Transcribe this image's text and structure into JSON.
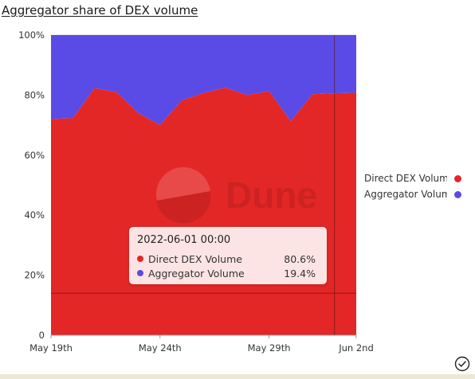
{
  "title": "Aggregator share of DEX volume",
  "colors": {
    "direct": "#e32726",
    "aggregator": "#5b4be6",
    "grid": "#dddddd"
  },
  "legend": [
    {
      "label": "Direct DEX Volume",
      "color": "#e32726"
    },
    {
      "label": "Aggregator Volume",
      "color": "#5b4be6"
    }
  ],
  "tooltip": {
    "title": "2022-06-01 00:00",
    "rows": [
      {
        "label": "Direct DEX Volume",
        "value": "80.6%",
        "color": "#e32726"
      },
      {
        "label": "Aggregator Volume",
        "value": "19.4%",
        "color": "#5b4be6"
      }
    ]
  },
  "watermark": "Dune",
  "chart_data": {
    "type": "area",
    "stacked": "percent",
    "x": [
      "2022-05-19",
      "2022-05-20",
      "2022-05-21",
      "2022-05-22",
      "2022-05-23",
      "2022-05-24",
      "2022-05-25",
      "2022-05-26",
      "2022-05-27",
      "2022-05-28",
      "2022-05-29",
      "2022-05-30",
      "2022-05-31",
      "2022-06-01",
      "2022-06-02"
    ],
    "x_tick_labels": [
      "May 19th",
      "May 24th",
      "May 29th",
      "Jun 2nd"
    ],
    "x_tick_dates": [
      "2022-05-19",
      "2022-05-24",
      "2022-05-29",
      "2022-06-02"
    ],
    "y_tick_labels": [
      "0",
      "20%",
      "40%",
      "60%",
      "80%",
      "100%"
    ],
    "ylim": [
      0,
      100
    ],
    "series": [
      {
        "name": "Direct DEX Volume",
        "values": [
          72,
          72.3,
          82.3,
          81,
          74,
          70,
          78.2,
          80.7,
          82.5,
          80,
          81.3,
          71.3,
          80.3,
          80.6,
          80.8
        ]
      },
      {
        "name": "Aggregator Volume",
        "values": [
          28,
          27.7,
          17.7,
          19,
          26,
          30,
          21.8,
          19.3,
          17.5,
          20,
          18.7,
          28.7,
          19.7,
          19.4,
          19.2
        ]
      }
    ],
    "crosshair": {
      "x": "2022-06-01",
      "y": 14
    }
  },
  "footer": {
    "check_icon": "check-circle-icon"
  }
}
